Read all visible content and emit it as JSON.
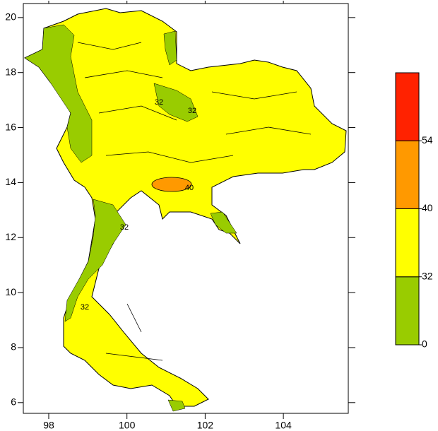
{
  "map": {
    "xlim": [
      97.35,
      105.66
    ],
    "xticks": [
      98,
      100,
      102,
      104
    ],
    "ylim": [
      5.61,
      20.51
    ],
    "yticks": [
      6,
      8,
      10,
      12,
      14,
      16,
      18,
      20
    ],
    "colorbar": {
      "levels": [
        0,
        32,
        40,
        54
      ],
      "colors": [
        "#99cc00",
        "#ffff00",
        "#ff9900",
        "#ff2200"
      ]
    },
    "contour_labels": [
      "32",
      "32",
      "32",
      "32",
      "40"
    ]
  }
}
